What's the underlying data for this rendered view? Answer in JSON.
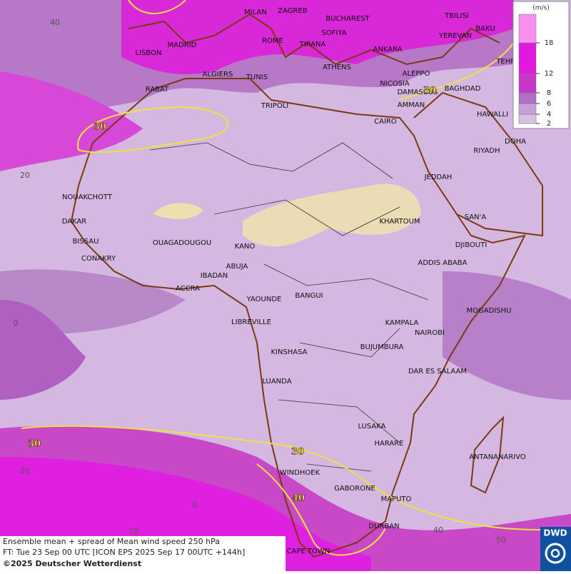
{
  "legend": {
    "unit": "(m/s)",
    "ticks": [
      2,
      4,
      6,
      8,
      12,
      18
    ],
    "colors": [
      "#b8b4bc",
      "#d8c0e4",
      "#c8a0d8",
      "#b070c4",
      "#c838c8",
      "#e018e0",
      "#f890f0"
    ]
  },
  "cities": [
    "MILAN",
    "ZAGREB",
    "BUCHAREST",
    "TBILISI",
    "BAKU",
    "LISBON",
    "MADRID",
    "ROME",
    "SOFIYA",
    "TIRANA",
    "ANKARA",
    "YEREVAN",
    "TEHRA",
    "ALGIERS",
    "TUNIS",
    "ATHENS",
    "ALEPPO",
    "NICOSIA",
    "RABAT",
    "DAMASCUS",
    "BAGHDAD",
    "AMMAN",
    "HAWALLI",
    "TRIPOLI",
    "CAIRO",
    "DOHA",
    "RIYADH",
    "JEDDAH",
    "NOUAKCHOTT",
    "DAKAR",
    "SAN'A",
    "KHARTOUM",
    "BISSAU",
    "OUAGADOUGOU",
    "DJIBOUTI",
    "KANO",
    "CONAKRY",
    "ABUJA",
    "ADDIS ABABA",
    "IBADAN",
    "ACCRA",
    "YAOUNDE",
    "BANGUI",
    "MOGADISHU",
    "LIBREVILLE",
    "KAMPALA",
    "NAIROBI",
    "KINSHASA",
    "BUJUMBURA",
    "DAR ES SALAAM",
    "LUANDA",
    "LUSAKA",
    "HARARE",
    "ANTANANARIVO",
    "WINDHOEK",
    "GABORONE",
    "MAPUTO",
    "DURBAN",
    "CAPE TOWN"
  ],
  "lat_labels": [
    40,
    20,
    0,
    20
  ],
  "lon_labels": [
    10,
    0,
    40,
    50
  ],
  "contour_labels": [
    30,
    30,
    30,
    30,
    40
  ],
  "footer": {
    "line1": "Ensemble mean + spread of Mean wind speed 250 hPa",
    "line2": "FT: Tue 23 Sep 00 UTC [ICON EPS 2025 Sep 17 00UTC +144h]",
    "line3": "©2025 Deutscher Wetterdienst"
  },
  "logo": "DWD"
}
